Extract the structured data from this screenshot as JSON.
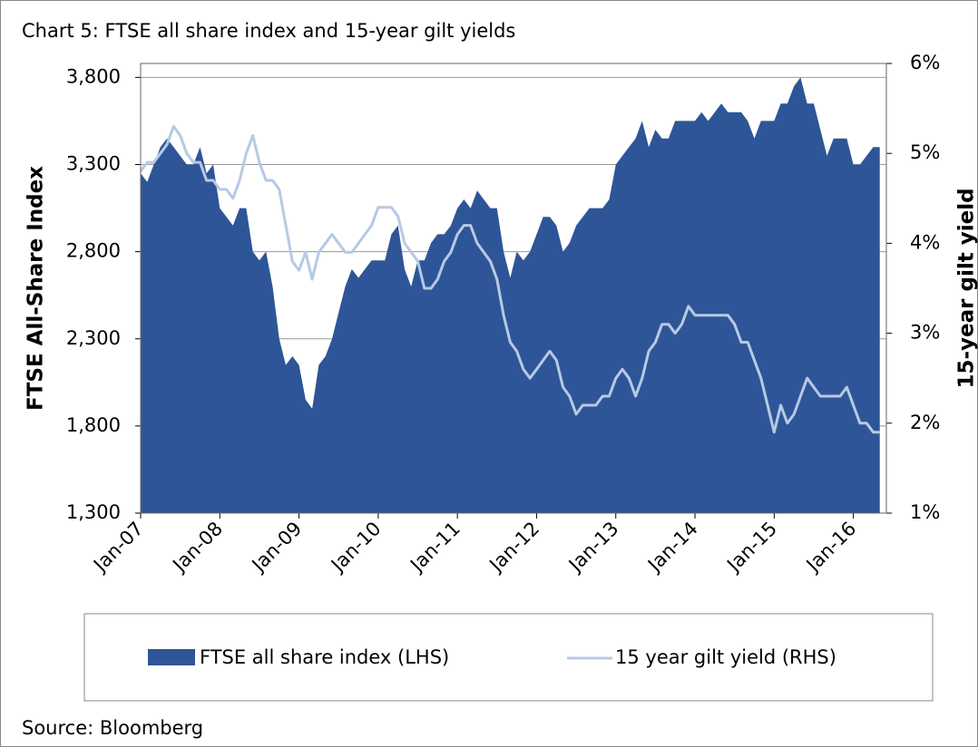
{
  "chart_data": {
    "type": "area-line",
    "title": "Chart 5: FTSE all share index and 15-year gilt yields",
    "source": "Source: Bloomberg",
    "ylabel": "FTSE All-Share Index",
    "y2label": "15-year gilt yield",
    "xlim": [
      "2007-01",
      "2016-06"
    ],
    "xticks": [
      {
        "value": "2007-01",
        "label": "Jan-07"
      },
      {
        "value": "2008-01",
        "label": "Jan-08"
      },
      {
        "value": "2009-01",
        "label": "Jan-09"
      },
      {
        "value": "2010-01",
        "label": "Jan-10"
      },
      {
        "value": "2011-01",
        "label": "Jan-11"
      },
      {
        "value": "2012-01",
        "label": "Jan-12"
      },
      {
        "value": "2013-01",
        "label": "Jan-13"
      },
      {
        "value": "2014-01",
        "label": "Jan-14"
      },
      {
        "value": "2015-01",
        "label": "Jan-15"
      },
      {
        "value": "2016-01",
        "label": "Jan-16"
      }
    ],
    "ylim": [
      1300,
      3880
    ],
    "yticks": [
      {
        "value": 1300,
        "label": "1,300"
      },
      {
        "value": 1800,
        "label": "1,800"
      },
      {
        "value": 2300,
        "label": "2,300"
      },
      {
        "value": 2800,
        "label": "2,800"
      },
      {
        "value": 3300,
        "label": "3,300"
      },
      {
        "value": 3800,
        "label": "3,800"
      }
    ],
    "y2lim": [
      1,
      6
    ],
    "y2ticks": [
      {
        "value": 1,
        "label": "1%"
      },
      {
        "value": 2,
        "label": "2%"
      },
      {
        "value": 3,
        "label": "3%"
      },
      {
        "value": 4,
        "label": "4%"
      },
      {
        "value": 5,
        "label": "5%"
      },
      {
        "value": 6,
        "label": "6%"
      }
    ],
    "grid": true,
    "x": [
      "2007-01",
      "2007-02",
      "2007-03",
      "2007-04",
      "2007-05",
      "2007-06",
      "2007-07",
      "2007-08",
      "2007-09",
      "2007-10",
      "2007-11",
      "2007-12",
      "2008-01",
      "2008-02",
      "2008-03",
      "2008-04",
      "2008-05",
      "2008-06",
      "2008-07",
      "2008-08",
      "2008-09",
      "2008-10",
      "2008-11",
      "2008-12",
      "2009-01",
      "2009-02",
      "2009-03",
      "2009-04",
      "2009-05",
      "2009-06",
      "2009-07",
      "2009-08",
      "2009-09",
      "2009-10",
      "2009-11",
      "2009-12",
      "2010-01",
      "2010-02",
      "2010-03",
      "2010-04",
      "2010-05",
      "2010-06",
      "2010-07",
      "2010-08",
      "2010-09",
      "2010-10",
      "2010-11",
      "2010-12",
      "2011-01",
      "2011-02",
      "2011-03",
      "2011-04",
      "2011-05",
      "2011-06",
      "2011-07",
      "2011-08",
      "2011-09",
      "2011-10",
      "2011-11",
      "2011-12",
      "2012-01",
      "2012-02",
      "2012-03",
      "2012-04",
      "2012-05",
      "2012-06",
      "2012-07",
      "2012-08",
      "2012-09",
      "2012-10",
      "2012-11",
      "2012-12",
      "2013-01",
      "2013-02",
      "2013-03",
      "2013-04",
      "2013-05",
      "2013-06",
      "2013-07",
      "2013-08",
      "2013-09",
      "2013-10",
      "2013-11",
      "2013-12",
      "2014-01",
      "2014-02",
      "2014-03",
      "2014-04",
      "2014-05",
      "2014-06",
      "2014-07",
      "2014-08",
      "2014-09",
      "2014-10",
      "2014-11",
      "2014-12",
      "2015-01",
      "2015-02",
      "2015-03",
      "2015-04",
      "2015-05",
      "2015-06",
      "2015-07",
      "2015-08",
      "2015-09",
      "2015-10",
      "2015-11",
      "2015-12",
      "2016-01",
      "2016-02",
      "2016-03",
      "2016-04",
      "2016-05"
    ],
    "series": [
      {
        "name": "FTSE all share index (LHS)",
        "color": "#2e5597",
        "values": [
          3250,
          3200,
          3300,
          3400,
          3450,
          3400,
          3350,
          3300,
          3300,
          3400,
          3250,
          3300,
          3050,
          3000,
          2950,
          3050,
          3050,
          2800,
          2750,
          2800,
          2600,
          2300,
          2150,
          2200,
          2150,
          1950,
          1900,
          2150,
          2200,
          2300,
          2450,
          2600,
          2700,
          2650,
          2700,
          2750,
          2750,
          2750,
          2900,
          2950,
          2700,
          2600,
          2750,
          2750,
          2850,
          2900,
          2900,
          2950,
          3050,
          3100,
          3050,
          3150,
          3100,
          3050,
          3050,
          2800,
          2650,
          2800,
          2750,
          2800,
          2900,
          3000,
          3000,
          2950,
          2800,
          2850,
          2950,
          3000,
          3050,
          3050,
          3050,
          3100,
          3300,
          3350,
          3400,
          3450,
          3550,
          3400,
          3500,
          3450,
          3450,
          3550,
          3550,
          3550,
          3550,
          3600,
          3550,
          3600,
          3650,
          3600,
          3600,
          3600,
          3550,
          3450,
          3550,
          3550,
          3550,
          3650,
          3650,
          3750,
          3800,
          3650,
          3650,
          3500,
          3350,
          3450,
          3450,
          3450,
          3300,
          3300,
          3350,
          3400,
          3400
        ]
      },
      {
        "name": "15 year gilt yield (RHS)",
        "color": "#b7c9e5",
        "axis": "y2",
        "values": [
          4.8,
          4.9,
          4.9,
          5.0,
          5.1,
          5.3,
          5.2,
          5.0,
          4.9,
          4.9,
          4.7,
          4.7,
          4.6,
          4.6,
          4.5,
          4.7,
          5.0,
          5.2,
          4.9,
          4.7,
          4.7,
          4.6,
          4.2,
          3.8,
          3.7,
          3.9,
          3.6,
          3.9,
          4.0,
          4.1,
          4.0,
          3.9,
          3.9,
          4.0,
          4.1,
          4.2,
          4.4,
          4.4,
          4.4,
          4.3,
          4.0,
          3.9,
          3.8,
          3.5,
          3.5,
          3.6,
          3.8,
          3.9,
          4.1,
          4.2,
          4.2,
          4.0,
          3.9,
          3.8,
          3.6,
          3.2,
          2.9,
          2.8,
          2.6,
          2.5,
          2.6,
          2.7,
          2.8,
          2.7,
          2.4,
          2.3,
          2.1,
          2.2,
          2.2,
          2.2,
          2.3,
          2.3,
          2.5,
          2.6,
          2.5,
          2.3,
          2.5,
          2.8,
          2.9,
          3.1,
          3.1,
          3.0,
          3.1,
          3.3,
          3.2,
          3.2,
          3.2,
          3.2,
          3.2,
          3.2,
          3.1,
          2.9,
          2.9,
          2.7,
          2.5,
          2.2,
          1.9,
          2.2,
          2.0,
          2.1,
          2.3,
          2.5,
          2.4,
          2.3,
          2.3,
          2.3,
          2.3,
          2.4,
          2.2,
          2.0,
          2.0,
          1.9,
          1.9
        ]
      }
    ]
  }
}
